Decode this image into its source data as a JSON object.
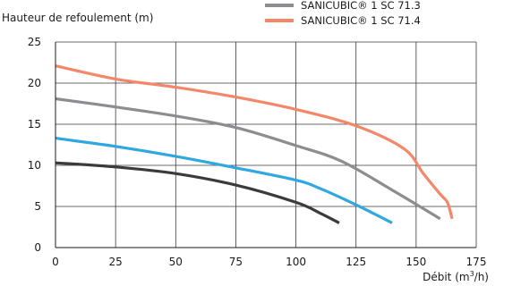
{
  "chart_data": {
    "type": "line",
    "ylabel": "Hauteur de refoulement (m)",
    "xlabel_main": "Débit (m",
    "xlabel_sup": "3",
    "xlabel_end": "/h)",
    "xlim": [
      0,
      175
    ],
    "ylim": [
      0,
      25
    ],
    "xticks": [
      "0",
      "25",
      "50",
      "75",
      "100",
      "125",
      "150",
      "175"
    ],
    "yticks": [
      "0",
      "5",
      "10",
      "15",
      "20",
      "25"
    ],
    "grid": true,
    "legend_placement": "top-right",
    "series": [
      {
        "name": "SANICUBIC® 1 SC 71.3",
        "color": "#8c8c91",
        "in_legend": true,
        "x": [
          0,
          25,
          50,
          75,
          100,
          119,
          140,
          160
        ],
        "y": [
          18.1,
          17.1,
          16.0,
          14.6,
          12.4,
          10.5,
          7.0,
          3.5
        ]
      },
      {
        "name": "SANICUBIC® 1 SC 71.4",
        "color": "#f4876a",
        "in_legend": true,
        "x": [
          0,
          25,
          50,
          75,
          100,
          125,
          145,
          153,
          160,
          163,
          165
        ],
        "y": [
          22.1,
          20.5,
          19.5,
          18.3,
          16.8,
          14.8,
          12.0,
          9.0,
          6.5,
          5.5,
          3.5
        ]
      },
      {
        "name": "",
        "color": "#2fa8e2",
        "in_legend": false,
        "x": [
          0,
          25,
          50,
          75,
          100,
          110,
          125,
          140
        ],
        "y": [
          13.3,
          12.3,
          11.1,
          9.7,
          8.2,
          7.2,
          5.2,
          3.0
        ]
      },
      {
        "name": "",
        "color": "#3b3b3b",
        "in_legend": false,
        "x": [
          0,
          25,
          50,
          75,
          100,
          110,
          118
        ],
        "y": [
          10.3,
          9.8,
          9.0,
          7.6,
          5.5,
          4.2,
          3.0
        ]
      }
    ]
  }
}
